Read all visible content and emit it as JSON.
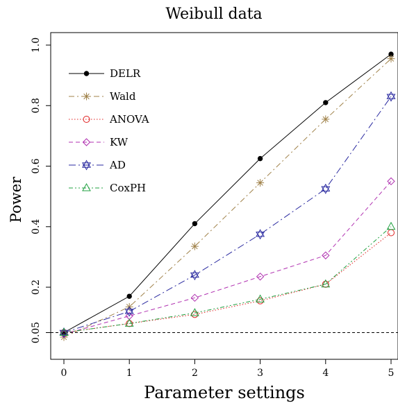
{
  "chart_data": {
    "type": "line",
    "title": "Weibull data",
    "xlabel": "Parameter settings",
    "ylabel": "Power",
    "x": [
      0,
      1,
      2,
      3,
      4,
      5
    ],
    "x_ticks": [
      "0",
      "1",
      "2",
      "3",
      "4",
      "5"
    ],
    "y_ticks": [
      "0.05",
      "0.2",
      "0.4",
      "0.6",
      "0.8",
      "1.0"
    ],
    "y_tick_values": [
      0.05,
      0.2,
      0.4,
      0.6,
      0.8,
      1.0
    ],
    "xlim": [
      0,
      5
    ],
    "ylim": [
      0,
      1.0
    ],
    "grid": false,
    "legend_position": "top-left",
    "reference_line": {
      "y": 0.05,
      "style": "dashed",
      "color": "#000000"
    },
    "series": [
      {
        "name": "DELR",
        "values": [
          0.05,
          0.17,
          0.41,
          0.625,
          0.81,
          0.97
        ],
        "color": "#000000",
        "marker": "filled-circle",
        "dash": "solid"
      },
      {
        "name": "Wald",
        "values": [
          0.035,
          0.135,
          0.335,
          0.545,
          0.755,
          0.955
        ],
        "color": "#a0824a",
        "marker": "asterisk",
        "dash": "dash-dot"
      },
      {
        "name": "ANOVA",
        "values": [
          0.05,
          0.08,
          0.11,
          0.155,
          0.21,
          0.38
        ],
        "color": "#e02020",
        "marker": "open-circle",
        "dash": "dotted"
      },
      {
        "name": "KW",
        "values": [
          0.045,
          0.105,
          0.165,
          0.235,
          0.305,
          0.55
        ],
        "color": "#b030b0",
        "marker": "diamond",
        "dash": "dashed"
      },
      {
        "name": "AD",
        "values": [
          0.05,
          0.12,
          0.24,
          0.375,
          0.525,
          0.83
        ],
        "color": "#2a2aa0",
        "marker": "star-of-david",
        "dash": "long-dash-dot"
      },
      {
        "name": "CoxPH",
        "values": [
          0.05,
          0.08,
          0.115,
          0.16,
          0.21,
          0.4
        ],
        "color": "#20a040",
        "marker": "open-triangle",
        "dash": "dash-dot-dot"
      }
    ]
  }
}
